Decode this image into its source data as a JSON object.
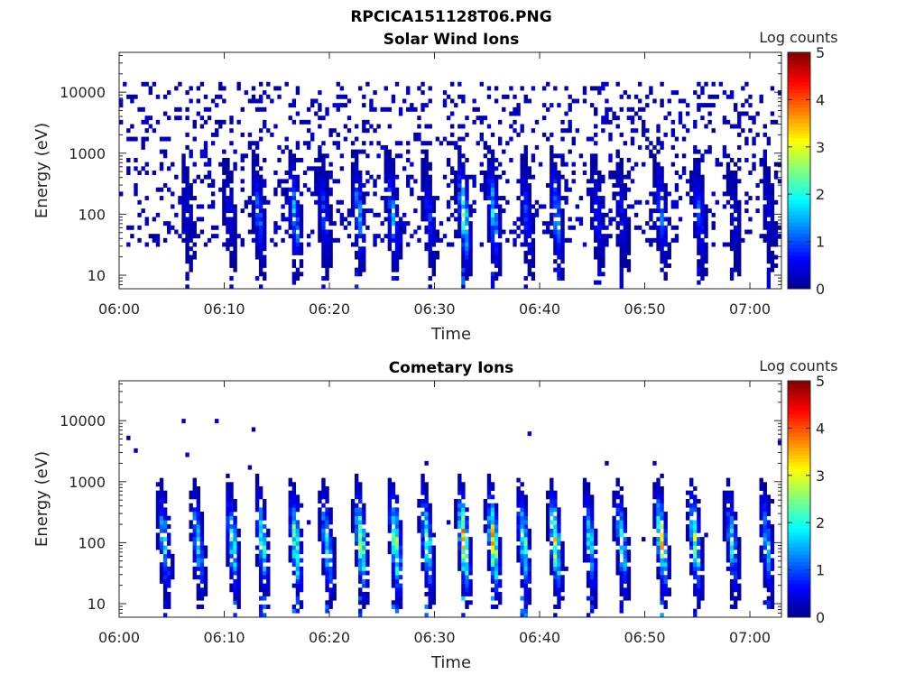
{
  "figure": {
    "main_title": "RPCICA151128T06.PNG"
  },
  "palette": {
    "background": "#ffffff",
    "axis": "#262626",
    "colormap": [
      "#00008f",
      "#0000ff",
      "#0080ff",
      "#00ffff",
      "#80ff80",
      "#ffff00",
      "#ff8000",
      "#ff0000",
      "#800000"
    ]
  },
  "chart_data": [
    {
      "type": "heatmap",
      "title": "Solar Wind Ions",
      "xlabel": "Time",
      "ylabel": "Energy (eV)",
      "x_ticks": [
        "06:00",
        "06:10",
        "06:20",
        "06:30",
        "06:40",
        "06:50",
        "07:00"
      ],
      "x_range": [
        "06:00",
        "07:03"
      ],
      "y_scale": "log",
      "y_ticks": [
        "10",
        "100",
        "1000",
        "10000"
      ],
      "y_range": [
        6,
        45000
      ],
      "colorbar": {
        "label": "Log counts",
        "ticks": [
          "0",
          "1",
          "2",
          "3",
          "4",
          "5"
        ],
        "range": [
          0,
          5
        ]
      },
      "grid": false,
      "background_probability": 0.18,
      "bursts": [
        {
          "t": 6.5,
          "intensity": 0.5
        },
        {
          "t": 10.5,
          "intensity": 0.5
        },
        {
          "t": 13.3,
          "intensity": 1.2
        },
        {
          "t": 16.7,
          "intensity": 1.7
        },
        {
          "t": 19.5,
          "intensity": 1.0
        },
        {
          "t": 22.8,
          "intensity": 1.6
        },
        {
          "t": 26.0,
          "intensity": 1.5
        },
        {
          "t": 29.5,
          "intensity": 0.9
        },
        {
          "t": 32.8,
          "intensity": 2.5
        },
        {
          "t": 35.6,
          "intensity": 2.0
        },
        {
          "t": 38.8,
          "intensity": 1.0
        },
        {
          "t": 41.6,
          "intensity": 1.6
        },
        {
          "t": 45.5,
          "intensity": 0.8
        },
        {
          "t": 47.8,
          "intensity": 0.7
        },
        {
          "t": 51.6,
          "intensity": 1.3
        },
        {
          "t": 55.2,
          "intensity": 1.2
        },
        {
          "t": 58.5,
          "intensity": 0.5
        },
        {
          "t": 61.8,
          "intensity": 0.5
        }
      ]
    },
    {
      "type": "heatmap",
      "title": "Cometary Ions",
      "xlabel": "Time",
      "ylabel": "Energy (eV)",
      "x_ticks": [
        "06:00",
        "06:10",
        "06:20",
        "06:30",
        "06:40",
        "06:50",
        "07:00"
      ],
      "x_range": [
        "06:00",
        "07:03"
      ],
      "y_scale": "log",
      "y_ticks": [
        "10",
        "100",
        "1000",
        "10000"
      ],
      "y_range": [
        6,
        45000
      ],
      "colorbar": {
        "label": "Log counts",
        "ticks": [
          "0",
          "1",
          "2",
          "3",
          "4",
          "5"
        ],
        "range": [
          0,
          5
        ]
      },
      "grid": false,
      "background_probability": 0.004,
      "bursts": [
        {
          "t": 4.3,
          "intensity": 2.0
        },
        {
          "t": 7.5,
          "intensity": 2.0
        },
        {
          "t": 10.8,
          "intensity": 2.3
        },
        {
          "t": 13.6,
          "intensity": 2.5
        },
        {
          "t": 16.8,
          "intensity": 3.0
        },
        {
          "t": 19.8,
          "intensity": 2.3
        },
        {
          "t": 23.0,
          "intensity": 3.2
        },
        {
          "t": 26.3,
          "intensity": 3.3
        },
        {
          "t": 29.3,
          "intensity": 2.6
        },
        {
          "t": 32.8,
          "intensity": 3.8
        },
        {
          "t": 35.6,
          "intensity": 3.5
        },
        {
          "t": 38.5,
          "intensity": 2.8
        },
        {
          "t": 41.5,
          "intensity": 3.3
        },
        {
          "t": 44.8,
          "intensity": 2.0
        },
        {
          "t": 47.8,
          "intensity": 2.3
        },
        {
          "t": 51.6,
          "intensity": 3.3
        },
        {
          "t": 54.8,
          "intensity": 2.8
        },
        {
          "t": 58.3,
          "intensity": 2.0
        },
        {
          "t": 61.6,
          "intensity": 1.8
        }
      ]
    }
  ]
}
